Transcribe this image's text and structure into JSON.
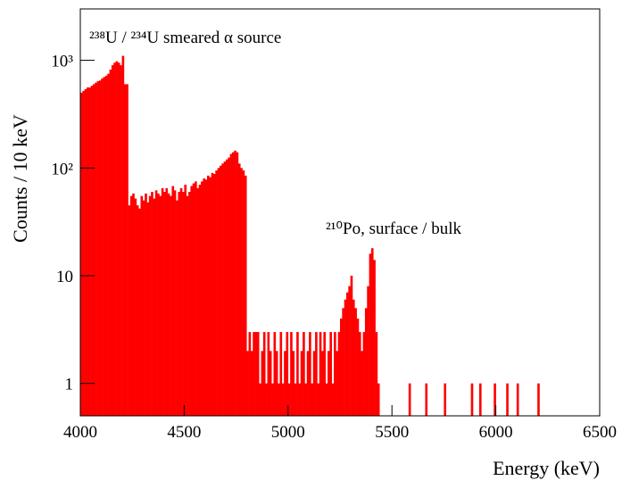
{
  "chart_data": {
    "type": "histogram",
    "annotations": [
      "²³⁸U / ²³⁴U smeared α source",
      "²¹⁰Po, surface / bulk"
    ],
    "x_label": "Energy (keV)",
    "y_label": "Counts / 10 keV",
    "color": "#ff0000",
    "log_y": true,
    "xlim": [
      4000,
      6500
    ],
    "xticks": [
      4000,
      4500,
      5000,
      5500,
      6000,
      6500
    ],
    "ylim": [
      0.5,
      3000
    ],
    "yticks": [
      1,
      10,
      {
        "value": 100,
        "label": "10²"
      },
      {
        "value": 1000,
        "label": "10³"
      }
    ],
    "bins": [
      4000,
      4010,
      4020,
      4030,
      4040,
      4050,
      4060,
      4070,
      4080,
      4090,
      4100,
      4110,
      4120,
      4130,
      4140,
      4150,
      4160,
      4170,
      4180,
      4190,
      4200,
      4210,
      4220,
      4230,
      4240,
      4250,
      4260,
      4270,
      4280,
      4290,
      4300,
      4310,
      4320,
      4330,
      4340,
      4350,
      4360,
      4370,
      4380,
      4390,
      4400,
      4410,
      4420,
      4430,
      4440,
      4450,
      4460,
      4470,
      4480,
      4490,
      4500,
      4510,
      4520,
      4530,
      4540,
      4550,
      4560,
      4570,
      4580,
      4590,
      4600,
      4610,
      4620,
      4630,
      4640,
      4650,
      4660,
      4670,
      4680,
      4690,
      4700,
      4710,
      4720,
      4730,
      4740,
      4750,
      4760,
      4770,
      4780,
      4790,
      4800,
      4810,
      4820,
      4830,
      4840,
      4850,
      4860,
      4870,
      4880,
      4890,
      4900,
      4910,
      4920,
      4930,
      4940,
      4950,
      4960,
      4970,
      4980,
      4990,
      5000,
      5010,
      5020,
      5030,
      5040,
      5050,
      5060,
      5070,
      5080,
      5090,
      5100,
      5110,
      5120,
      5130,
      5140,
      5150,
      5160,
      5170,
      5180,
      5190,
      5200,
      5210,
      5220,
      5230,
      5240,
      5250,
      5260,
      5270,
      5280,
      5290,
      5300,
      5310,
      5320,
      5330,
      5340,
      5350,
      5360,
      5370,
      5380,
      5390,
      5400,
      5410,
      5420,
      5430,
      5440,
      5450,
      5460,
      5470,
      5480,
      5490,
      5500,
      5510,
      5520,
      5530,
      5540,
      5550,
      5560,
      5570,
      5580,
      5590,
      5600,
      5610,
      5620,
      5630,
      5640,
      5650,
      5660,
      5670,
      5680,
      5690,
      5700,
      5710,
      5720,
      5730,
      5740,
      5750,
      5760,
      5770,
      5780,
      5790,
      5800,
      5810,
      5820,
      5830,
      5840,
      5850,
      5860,
      5870,
      5880,
      5890,
      5900,
      5910,
      5920,
      5930,
      5940,
      5950,
      5960,
      5970,
      5980,
      5990,
      6000,
      6010,
      6020,
      6030,
      6040,
      6050,
      6060,
      6070,
      6080,
      6090,
      6100,
      6110,
      6120,
      6130,
      6140,
      6150,
      6160,
      6170,
      6180,
      6190,
      6200,
      6210,
      6220,
      6230,
      6240,
      6250,
      6260,
      6270,
      6280,
      6290,
      6300,
      6310,
      6320,
      6330,
      6340,
      6350,
      6360,
      6370,
      6380,
      6390,
      6400,
      6410,
      6420,
      6430,
      6440,
      6450,
      6460,
      6470,
      6480,
      6490,
      6500
    ],
    "values": [
      500,
      520,
      540,
      560,
      560,
      580,
      600,
      620,
      640,
      650,
      680,
      700,
      720,
      750,
      820,
      900,
      950,
      980,
      950,
      900,
      1100,
      600,
      600,
      45,
      55,
      58,
      52,
      45,
      42,
      55,
      50,
      58,
      48,
      55,
      60,
      52,
      62,
      58,
      55,
      65,
      60,
      65,
      58,
      55,
      68,
      62,
      50,
      60,
      65,
      60,
      70,
      55,
      60,
      68,
      72,
      75,
      65,
      70,
      75,
      80,
      78,
      85,
      82,
      90,
      88,
      95,
      100,
      105,
      110,
      115,
      120,
      125,
      135,
      140,
      145,
      140,
      110,
      100,
      95,
      85,
      2,
      3,
      2,
      3,
      3,
      3,
      1,
      2,
      3,
      1,
      3,
      2,
      1,
      3,
      2,
      1,
      3,
      1,
      2,
      3,
      1,
      3,
      2,
      1,
      3,
      1,
      2,
      3,
      1,
      2,
      3,
      1,
      2,
      3,
      1,
      3,
      2,
      3,
      1,
      2,
      3,
      1,
      3,
      2,
      3,
      4,
      5,
      6,
      7,
      8,
      10,
      6,
      5,
      4,
      3,
      2,
      3,
      5,
      8,
      16,
      18,
      14,
      3,
      1,
      0,
      0,
      0,
      0,
      0,
      0,
      0,
      0,
      0,
      0,
      0,
      0,
      0,
      0,
      1,
      0,
      0,
      0,
      0,
      0,
      0,
      0,
      1,
      0,
      0,
      0,
      0,
      0,
      0,
      0,
      0,
      1,
      0,
      0,
      0,
      0,
      0,
      0,
      0,
      0,
      0,
      0,
      0,
      0,
      1,
      0,
      0,
      0,
      1,
      0,
      0,
      0,
      0,
      0,
      0,
      1,
      0,
      0,
      0,
      0,
      0,
      1,
      0,
      0,
      0,
      0,
      1,
      0,
      0,
      0,
      0,
      0,
      0,
      0,
      0,
      0,
      1,
      0,
      0,
      0,
      0,
      0,
      0,
      0,
      0,
      0,
      0,
      0,
      0,
      0,
      0,
      0,
      0,
      0,
      0,
      0,
      0,
      0,
      0,
      0,
      0,
      0,
      0,
      0,
      0,
      0
    ]
  }
}
